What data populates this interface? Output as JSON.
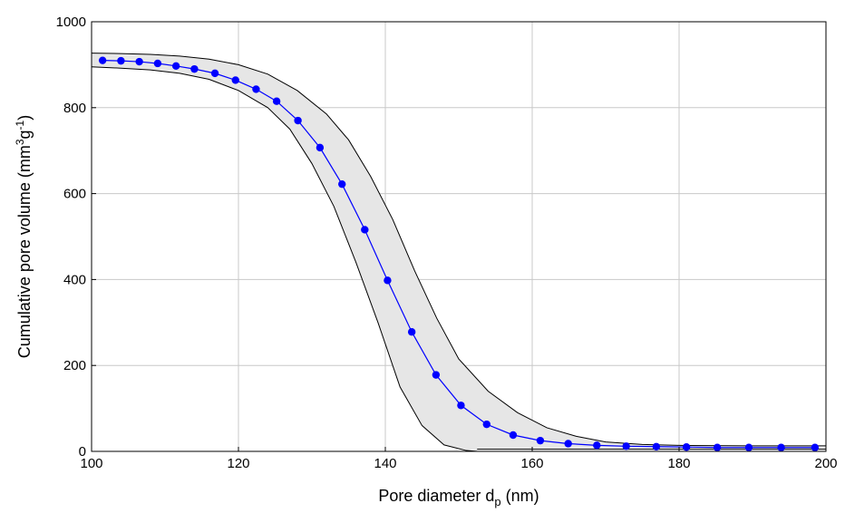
{
  "chart_data": {
    "type": "line",
    "title": "",
    "xlabel_main": "Pore diameter d",
    "xlabel_sub": "p",
    "xlabel_tail": " (nm)",
    "ylabel_main": "Cumulative pore volume (mm",
    "ylabel_sup1": "3",
    "ylabel_mid": "g",
    "ylabel_sup2": "-1",
    "ylabel_tail": ")",
    "xlim": [
      100,
      200
    ],
    "ylim": [
      0,
      1000
    ],
    "xticks": [
      100,
      120,
      140,
      160,
      180,
      200
    ],
    "yticks": [
      0,
      200,
      400,
      600,
      800,
      1000
    ],
    "grid": true,
    "colors": {
      "series": "#0000ff",
      "band_fill": "#e6e6e6",
      "band_edge": "#000000"
    },
    "series": [
      {
        "x": [
          101.5,
          104.0,
          106.5,
          109.0,
          111.5,
          114.0,
          116.8,
          119.6,
          122.4,
          125.2,
          128.1,
          131.1,
          134.1,
          137.2,
          140.3,
          143.6,
          146.9,
          150.3,
          153.8,
          157.4,
          161.1,
          164.9,
          168.8,
          172.8,
          176.9,
          181.0,
          185.2,
          189.5,
          193.9,
          198.5
        ],
        "y": [
          910,
          909,
          907,
          903,
          897,
          890,
          880,
          864,
          843,
          815,
          770,
          707,
          622,
          516,
          398,
          278,
          178,
          107,
          63,
          38,
          25,
          18,
          14,
          12,
          11,
          10,
          9,
          9,
          9,
          9
        ]
      }
    ],
    "band_upper": {
      "x": [
        100,
        104,
        108,
        112,
        116,
        120,
        124,
        128,
        132,
        135,
        138,
        141,
        144,
        147,
        150,
        154,
        158,
        162,
        166,
        170,
        175,
        180,
        190,
        200
      ],
      "y": [
        927,
        926,
        924,
        920,
        913,
        900,
        878,
        840,
        785,
        725,
        640,
        540,
        420,
        310,
        215,
        140,
        90,
        55,
        35,
        22,
        16,
        14,
        13,
        13
      ]
    },
    "band_lower": {
      "x": [
        100,
        104,
        108,
        112,
        116,
        120,
        124,
        127,
        130,
        133,
        136,
        139,
        142,
        145,
        148,
        151,
        152.5
      ],
      "y": [
        895,
        892,
        888,
        880,
        866,
        840,
        800,
        750,
        670,
        570,
        440,
        300,
        150,
        60,
        15,
        2,
        0
      ]
    },
    "band_lower_tail": {
      "x": [
        152.5,
        200
      ],
      "y": [
        5,
        5
      ]
    }
  }
}
